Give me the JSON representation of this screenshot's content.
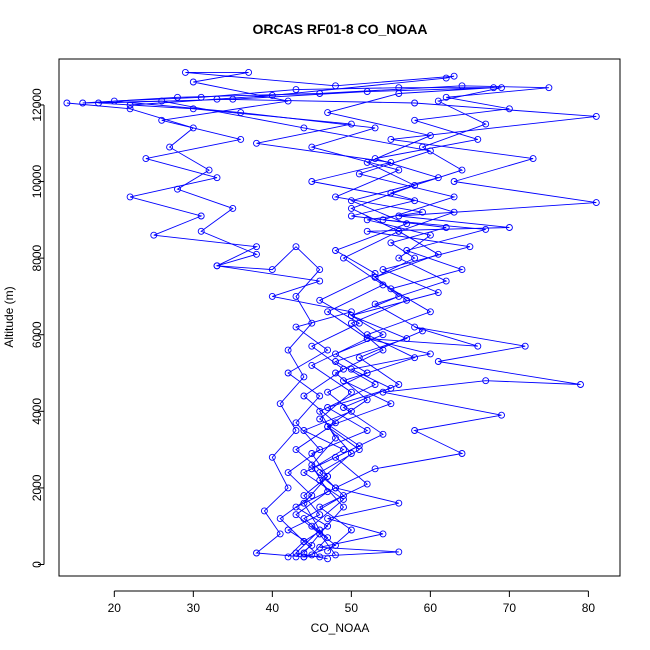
{
  "chart_data": {
    "type": "line",
    "title": "ORCAS RF01-8 CO_NOAA",
    "xlabel": "CO_NOAA",
    "ylabel": "Altitude (m)",
    "xlim": [
      13,
      84
    ],
    "ylim": [
      -300,
      13200
    ],
    "xticks": [
      20,
      30,
      40,
      50,
      60,
      70,
      80
    ],
    "yticks": [
      0,
      2000,
      4000,
      6000,
      8000,
      10000,
      12000
    ],
    "grid": false,
    "legend": "none",
    "markers": "open-circle",
    "color": "#0000ff",
    "series": [
      {
        "values": [
          [
            46,
            200
          ],
          [
            44,
            600
          ],
          [
            47,
            1000
          ],
          [
            43,
            1500
          ],
          [
            48,
            2000
          ],
          [
            45,
            2500
          ],
          [
            49,
            3000
          ],
          [
            44,
            3500
          ],
          [
            50,
            4000
          ],
          [
            47,
            4500
          ],
          [
            52,
            5000
          ],
          [
            48,
            5500
          ],
          [
            54,
            6000
          ],
          [
            50,
            6500
          ],
          [
            56,
            7000
          ],
          [
            53,
            7500
          ],
          [
            58,
            8000
          ],
          [
            55,
            8400
          ],
          [
            62,
            8800
          ],
          [
            50,
            9100
          ],
          [
            58,
            9500
          ],
          [
            45,
            10000
          ],
          [
            55,
            10500
          ],
          [
            38,
            11000
          ],
          [
            50,
            11500
          ],
          [
            30,
            11900
          ],
          [
            18,
            12050
          ],
          [
            35,
            12150
          ],
          [
            52,
            12350
          ],
          [
            68,
            12450
          ],
          [
            56,
            12300
          ],
          [
            47,
            11800
          ],
          [
            60,
            11200
          ],
          [
            52,
            10500
          ],
          [
            58,
            9900
          ],
          [
            50,
            9300
          ],
          [
            56,
            8700
          ],
          [
            49,
            8000
          ],
          [
            54,
            7300
          ],
          [
            47,
            6600
          ],
          [
            52,
            5900
          ],
          [
            45,
            5200
          ],
          [
            50,
            4500
          ],
          [
            46,
            3800
          ],
          [
            51,
            3100
          ],
          [
            44,
            2400
          ],
          [
            49,
            1700
          ],
          [
            45,
            1000
          ],
          [
            48,
            500
          ],
          [
            44,
            200
          ]
        ]
      },
      {
        "values": [
          [
            45,
            250
          ],
          [
            47,
            700
          ],
          [
            44,
            1200
          ],
          [
            49,
            1800
          ],
          [
            46,
            2400
          ],
          [
            51,
            3000
          ],
          [
            47,
            3600
          ],
          [
            55,
            4200
          ],
          [
            49,
            4800
          ],
          [
            58,
            5400
          ],
          [
            52,
            6000
          ],
          [
            60,
            6600
          ],
          [
            55,
            7200
          ],
          [
            64,
            7700
          ],
          [
            57,
            8200
          ],
          [
            67,
            8750
          ],
          [
            54,
            9000
          ],
          [
            63,
            9600
          ],
          [
            51,
            10200
          ],
          [
            60,
            10800
          ],
          [
            44,
            11400
          ],
          [
            26,
            12100
          ],
          [
            16,
            12050
          ],
          [
            28,
            12200
          ],
          [
            46,
            12300
          ],
          [
            64,
            12500
          ],
          [
            75,
            12450
          ],
          [
            62,
            12200
          ],
          [
            70,
            11900
          ],
          [
            58,
            11600
          ],
          [
            66,
            11100
          ],
          [
            53,
            10600
          ],
          [
            61,
            10100
          ],
          [
            50,
            9500
          ],
          [
            57,
            8900
          ],
          [
            48,
            8200
          ],
          [
            53,
            7600
          ],
          [
            46,
            6900
          ],
          [
            51,
            6300
          ],
          [
            45,
            5700
          ],
          [
            49,
            5100
          ],
          [
            44,
            4400
          ],
          [
            48,
            3700
          ],
          [
            43,
            3000
          ],
          [
            47,
            2300
          ],
          [
            44,
            1600
          ],
          [
            46,
            900
          ],
          [
            43,
            300
          ],
          [
            47,
            150
          ]
        ]
      },
      {
        "values": [
          [
            44,
            300
          ],
          [
            46,
            800
          ],
          [
            43,
            1300
          ],
          [
            47,
            1900
          ],
          [
            45,
            2600
          ],
          [
            48,
            3300
          ],
          [
            46,
            4000
          ],
          [
            53,
            4700
          ],
          [
            48,
            5300
          ],
          [
            57,
            5900
          ],
          [
            50,
            6500
          ],
          [
            61,
            7100
          ],
          [
            54,
            7700
          ],
          [
            65,
            8300
          ],
          [
            52,
            8700
          ],
          [
            70,
            8800
          ],
          [
            56,
            9100
          ],
          [
            81,
            9450
          ],
          [
            63,
            10000
          ],
          [
            73,
            10600
          ],
          [
            55,
            11100
          ],
          [
            81,
            11700
          ],
          [
            58,
            12050
          ],
          [
            33,
            12150
          ],
          [
            22,
            12000
          ],
          [
            40,
            12250
          ],
          [
            62,
            12700
          ],
          [
            63,
            12750
          ],
          [
            48,
            12500
          ],
          [
            29,
            12850
          ],
          [
            37,
            12850
          ],
          [
            30,
            12600
          ],
          [
            42,
            12100
          ],
          [
            26,
            11600
          ],
          [
            36,
            11100
          ],
          [
            24,
            10600
          ],
          [
            33,
            10100
          ],
          [
            22,
            9600
          ],
          [
            31,
            9100
          ],
          [
            25,
            8600
          ],
          [
            38,
            8300
          ],
          [
            33,
            7800
          ],
          [
            46,
            7400
          ],
          [
            40,
            7000
          ],
          [
            50,
            6600
          ],
          [
            43,
            6200
          ],
          [
            47,
            5600
          ],
          [
            42,
            5000
          ],
          [
            46,
            4400
          ],
          [
            43,
            3700
          ],
          [
            46,
            3000
          ],
          [
            42,
            2400
          ],
          [
            45,
            1800
          ],
          [
            41,
            1200
          ],
          [
            44,
            600
          ],
          [
            42,
            200
          ]
        ]
      },
      {
        "values": [
          [
            47,
            350
          ],
          [
            50,
            900
          ],
          [
            46,
            1500
          ],
          [
            52,
            2100
          ],
          [
            48,
            2800
          ],
          [
            54,
            3400
          ],
          [
            49,
            4100
          ],
          [
            56,
            4700
          ],
          [
            51,
            5400
          ],
          [
            59,
            6100
          ],
          [
            53,
            6800
          ],
          [
            62,
            7400
          ],
          [
            56,
            8000
          ],
          [
            60,
            8600
          ],
          [
            52,
            9000
          ],
          [
            59,
            9200
          ],
          [
            48,
            9600
          ],
          [
            56,
            10300
          ],
          [
            45,
            10900
          ],
          [
            53,
            11400
          ],
          [
            36,
            11800
          ],
          [
            20,
            12100
          ],
          [
            31,
            12200
          ],
          [
            43,
            12400
          ],
          [
            56,
            12450
          ],
          [
            69,
            12450
          ],
          [
            61,
            12100
          ],
          [
            67,
            11500
          ],
          [
            59,
            10900
          ],
          [
            64,
            10300
          ],
          [
            55,
            9700
          ],
          [
            63,
            9200
          ],
          [
            56,
            8700
          ],
          [
            61,
            8100
          ],
          [
            53,
            7500
          ],
          [
            57,
            6900
          ],
          [
            50,
            6300
          ],
          [
            54,
            5600
          ],
          [
            48,
            5000
          ],
          [
            52,
            4300
          ],
          [
            47,
            3600
          ],
          [
            50,
            2900
          ],
          [
            46,
            2200
          ],
          [
            49,
            1500
          ],
          [
            46,
            800
          ],
          [
            48,
            250
          ]
        ]
      },
      {
        "values": [
          [
            43,
            200
          ],
          [
            45,
            500
          ],
          [
            42,
            900
          ],
          [
            46,
            1300
          ],
          [
            44,
            1800
          ],
          [
            47,
            2300
          ],
          [
            45,
            2900
          ],
          [
            52,
            3500
          ],
          [
            47,
            4100
          ],
          [
            55,
            4600
          ],
          [
            50,
            5100
          ],
          [
            60,
            5500
          ],
          [
            52,
            5900
          ],
          [
            66,
            5700
          ],
          [
            58,
            6200
          ],
          [
            72,
            5700
          ],
          [
            61,
            5300
          ],
          [
            79,
            4700
          ],
          [
            67,
            4800
          ],
          [
            54,
            4500
          ],
          [
            69,
            3900
          ],
          [
            58,
            3500
          ],
          [
            64,
            2900
          ],
          [
            53,
            2500
          ],
          [
            48,
            2000
          ],
          [
            56,
            1600
          ],
          [
            47,
            1200
          ],
          [
            54,
            800
          ],
          [
            46,
            450
          ],
          [
            56,
            330
          ],
          [
            44,
            200
          ],
          [
            38,
            300
          ],
          [
            41,
            800
          ],
          [
            39,
            1400
          ],
          [
            42,
            2000
          ],
          [
            40,
            2800
          ],
          [
            43,
            3500
          ],
          [
            41,
            4200
          ],
          [
            44,
            4900
          ],
          [
            42,
            5600
          ],
          [
            45,
            6300
          ],
          [
            43,
            7000
          ],
          [
            46,
            7700
          ],
          [
            43,
            8300
          ],
          [
            40,
            7700
          ],
          [
            33,
            7800
          ],
          [
            38,
            8100
          ],
          [
            31,
            8700
          ],
          [
            35,
            9300
          ],
          [
            28,
            9800
          ],
          [
            32,
            10300
          ],
          [
            27,
            10900
          ],
          [
            30,
            11400
          ],
          [
            22,
            11900
          ],
          [
            14,
            12050
          ]
        ]
      }
    ]
  }
}
